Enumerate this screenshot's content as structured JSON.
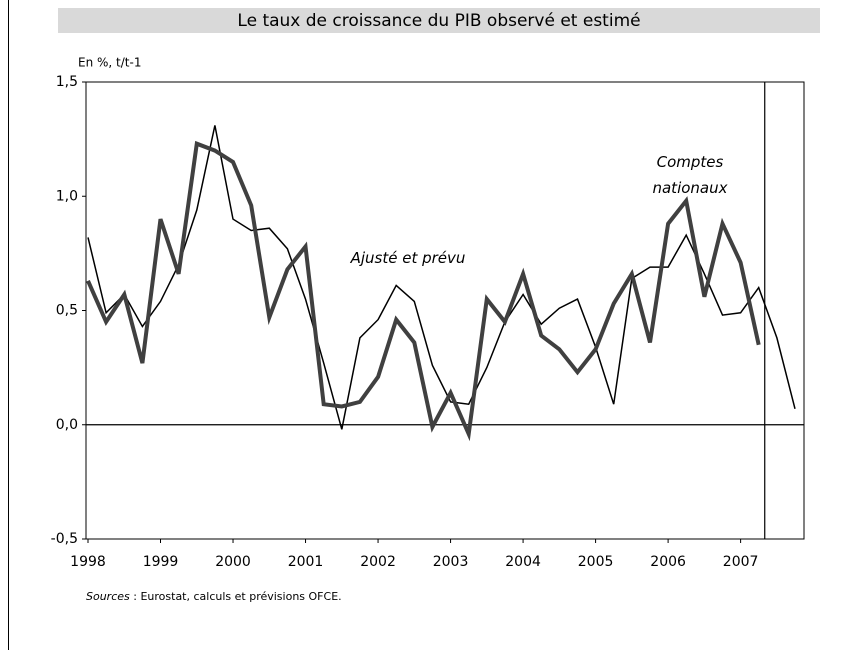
{
  "chart_data": {
    "type": "line",
    "title": "Le taux de croissance du PIB observé et estimé",
    "y_label": "En %, t/t-1",
    "annotations": [
      {
        "lines": [
          "Ajusté et prévu"
        ]
      },
      {
        "lines": [
          "Comptes",
          "nationaux"
        ]
      }
    ],
    "source_label": "Sources",
    "source_text": " : Eurostat, calculs et prévisions OFCE.",
    "categories": [
      "1998",
      null,
      null,
      null,
      "1999",
      null,
      null,
      null,
      "2000",
      null,
      null,
      null,
      "2001",
      null,
      null,
      null,
      "2002",
      null,
      null,
      null,
      "2003",
      null,
      null,
      null,
      "2004",
      null,
      null,
      null,
      "2005",
      null,
      null,
      null,
      "2006",
      null,
      null,
      null,
      "2007",
      null,
      null,
      null
    ],
    "series": [
      {
        "color": "#000000",
        "width": 1.5,
        "values": [
          0.82,
          0.49,
          0.57,
          0.43,
          0.54,
          0.7,
          0.94,
          1.31,
          0.9,
          0.85,
          0.86,
          0.77,
          0.55,
          0.27,
          -0.02,
          0.38,
          0.46,
          0.61,
          0.54,
          0.26,
          0.1,
          0.09,
          0.25,
          0.45,
          0.57,
          0.44,
          0.51,
          0.55,
          0.34,
          0.09,
          0.64,
          0.69,
          0.69,
          0.83,
          0.66,
          0.48,
          0.49,
          0.6,
          0.38,
          0.07
        ]
      },
      {
        "color": "#404040",
        "width": 4,
        "values": [
          0.63,
          0.45,
          0.57,
          0.27,
          0.9,
          0.66,
          1.23,
          1.2,
          1.15,
          0.96,
          0.47,
          0.68,
          0.78,
          0.09,
          0.08,
          0.1,
          0.21,
          0.46,
          0.36,
          -0.01,
          0.14,
          -0.04,
          0.55,
          0.45,
          0.66,
          0.39,
          0.33,
          0.23,
          0.33,
          0.53,
          0.66,
          0.36,
          0.88,
          0.98,
          0.56,
          0.88,
          0.71,
          0.35,
          null,
          null
        ]
      }
    ],
    "ylim": [
      -0.5,
      1.5
    ],
    "yticks": [
      {
        "value": -0.5,
        "label": "-0,5"
      },
      {
        "value": 0,
        "label": "0,0"
      },
      {
        "value": 0.5,
        "label": "0,5"
      },
      {
        "value": 1,
        "label": "1,0"
      },
      {
        "value": 1.5,
        "label": "1,5"
      }
    ],
    "grid": false
  }
}
